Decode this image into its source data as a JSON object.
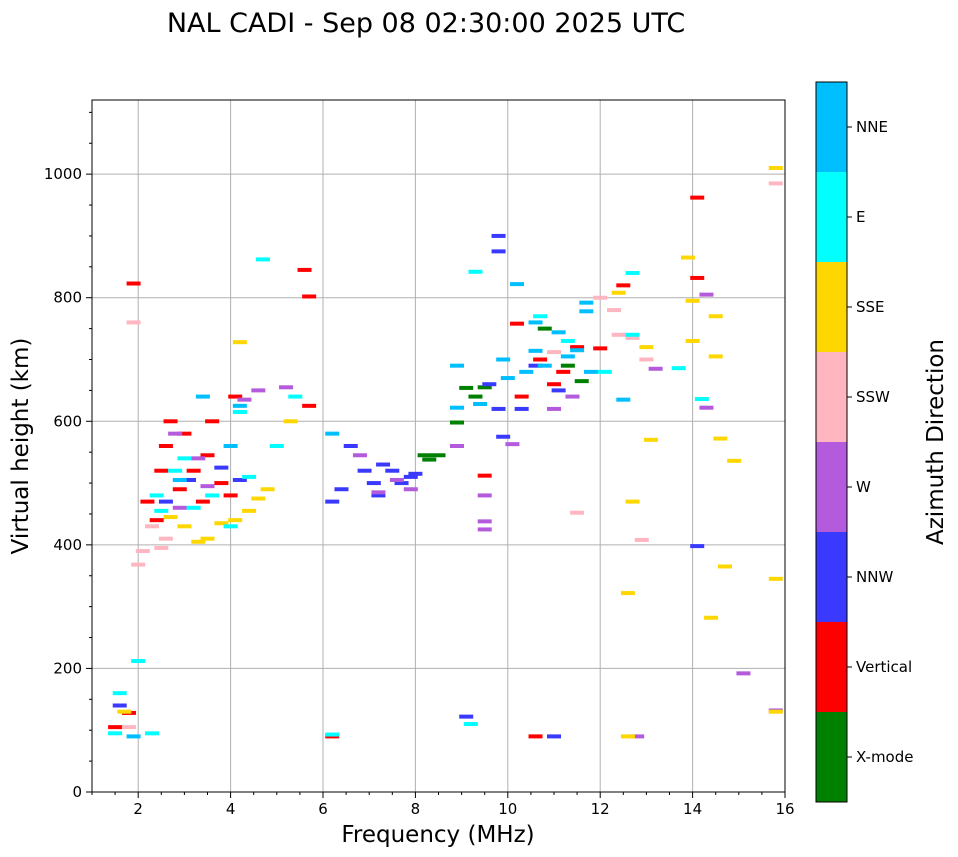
{
  "chart_data": {
    "type": "scatter",
    "title": "NAL CADI - Sep 08 02:30:00 2025 UTC",
    "xlabel": "Frequency (MHz)",
    "ylabel": "Virtual height (km)",
    "xlim": [
      1,
      16
    ],
    "ylim": [
      0,
      1120
    ],
    "xticks": [
      2,
      4,
      6,
      8,
      10,
      12,
      14,
      16
    ],
    "xtick_labels": [
      "2",
      "4",
      "6",
      "8",
      "10",
      "12",
      "14",
      "16"
    ],
    "yticks": [
      0,
      200,
      400,
      600,
      800,
      1000
    ],
    "ytick_labels": [
      "0",
      "200",
      "400",
      "600",
      "800",
      "1000"
    ],
    "grid": true,
    "colorbar": {
      "label": "Azimuth Direction",
      "categories": [
        {
          "name": "X-mode",
          "color": "#008000"
        },
        {
          "name": "Vertical",
          "color": "#ff0000"
        },
        {
          "name": "NNW",
          "color": "#3a3aff"
        },
        {
          "name": "W",
          "color": "#b45adc"
        },
        {
          "name": "SSW",
          "color": "#ffb6c1"
        },
        {
          "name": "SSE",
          "color": "#ffd700"
        },
        {
          "name": "E",
          "color": "#00ffff"
        },
        {
          "name": "NNE",
          "color": "#00bfff"
        }
      ]
    },
    "series": [
      {
        "name": "X-mode",
        "points": [
          [
            8.2,
            545
          ],
          [
            8.5,
            545
          ],
          [
            9.5,
            655
          ],
          [
            10.8,
            750
          ],
          [
            11.3,
            690
          ],
          [
            8.9,
            598
          ],
          [
            9.1,
            654
          ],
          [
            11.6,
            665
          ],
          [
            8.3,
            538
          ],
          [
            9.3,
            640
          ]
        ]
      },
      {
        "name": "Vertical",
        "points": [
          [
            1.5,
            105
          ],
          [
            1.8,
            128
          ],
          [
            2.4,
            440
          ],
          [
            2.6,
            560
          ],
          [
            2.7,
            600
          ],
          [
            3.0,
            580
          ],
          [
            3.2,
            520
          ],
          [
            3.5,
            545
          ],
          [
            3.8,
            500
          ],
          [
            4.0,
            480
          ],
          [
            4.1,
            640
          ],
          [
            5.6,
            845
          ],
          [
            5.7,
            802
          ],
          [
            5.7,
            625
          ],
          [
            6.2,
            90
          ],
          [
            9.5,
            512
          ],
          [
            10.2,
            758
          ],
          [
            10.6,
            90
          ],
          [
            10.7,
            700
          ],
          [
            11.2,
            680
          ],
          [
            11.5,
            720
          ],
          [
            12.0,
            718
          ],
          [
            12.5,
            820
          ],
          [
            14.1,
            962
          ],
          [
            14.1,
            832
          ],
          [
            11.0,
            660
          ],
          [
            10.3,
            640
          ],
          [
            2.9,
            490
          ],
          [
            3.4,
            470
          ],
          [
            2.2,
            470
          ],
          [
            2.5,
            520
          ],
          [
            3.6,
            600
          ],
          [
            1.9,
            823
          ]
        ]
      },
      {
        "name": "NNW",
        "points": [
          [
            1.6,
            140
          ],
          [
            6.6,
            560
          ],
          [
            6.9,
            520
          ],
          [
            7.1,
            500
          ],
          [
            7.3,
            530
          ],
          [
            7.5,
            520
          ],
          [
            7.7,
            500
          ],
          [
            7.9,
            510
          ],
          [
            9.8,
            900
          ],
          [
            9.8,
            875
          ],
          [
            9.1,
            122
          ],
          [
            9.8,
            620
          ],
          [
            10.3,
            620
          ],
          [
            11.0,
            90
          ],
          [
            14.1,
            398
          ],
          [
            10.6,
            690
          ],
          [
            11.1,
            650
          ],
          [
            6.2,
            470
          ],
          [
            6.4,
            490
          ],
          [
            7.2,
            480
          ],
          [
            8.0,
            515
          ],
          [
            2.6,
            470
          ],
          [
            3.1,
            505
          ],
          [
            3.8,
            525
          ],
          [
            4.2,
            505
          ],
          [
            9.9,
            575
          ],
          [
            9.6,
            660
          ]
        ]
      },
      {
        "name": "W",
        "points": [
          [
            6.8,
            545
          ],
          [
            7.2,
            485
          ],
          [
            7.6,
            505
          ],
          [
            7.9,
            490
          ],
          [
            9.5,
            480
          ],
          [
            9.5,
            438
          ],
          [
            9.5,
            425
          ],
          [
            10.1,
            563
          ],
          [
            11.0,
            620
          ],
          [
            12.8,
            90
          ],
          [
            13.2,
            685
          ],
          [
            14.3,
            805
          ],
          [
            14.3,
            622
          ],
          [
            15.1,
            192
          ],
          [
            15.8,
            132
          ],
          [
            2.8,
            580
          ],
          [
            3.3,
            540
          ],
          [
            4.6,
            650
          ],
          [
            5.2,
            655
          ],
          [
            2.9,
            460
          ],
          [
            3.5,
            495
          ],
          [
            4.3,
            635
          ],
          [
            8.9,
            560
          ],
          [
            11.4,
            640
          ]
        ]
      },
      {
        "name": "SSW",
        "points": [
          [
            1.8,
            105
          ],
          [
            2.0,
            368
          ],
          [
            2.1,
            390
          ],
          [
            2.3,
            430
          ],
          [
            2.6,
            410
          ],
          [
            12.4,
            740
          ],
          [
            12.7,
            735
          ],
          [
            12.9,
            408
          ],
          [
            12.0,
            800
          ],
          [
            15.8,
            985
          ],
          [
            11.5,
            452
          ],
          [
            11.0,
            712
          ],
          [
            12.3,
            780
          ],
          [
            13.0,
            700
          ],
          [
            1.9,
            760
          ],
          [
            2.5,
            395
          ]
        ]
      },
      {
        "name": "SSE",
        "points": [
          [
            1.7,
            130
          ],
          [
            3.3,
            405
          ],
          [
            3.5,
            410
          ],
          [
            3.8,
            435
          ],
          [
            4.1,
            440
          ],
          [
            4.4,
            455
          ],
          [
            4.6,
            475
          ],
          [
            4.8,
            490
          ],
          [
            12.6,
            90
          ],
          [
            12.6,
            322
          ],
          [
            13.1,
            570
          ],
          [
            13.9,
            865
          ],
          [
            14.5,
            770
          ],
          [
            14.6,
            572
          ],
          [
            14.7,
            365
          ],
          [
            14.4,
            282
          ],
          [
            14.9,
            536
          ],
          [
            15.8,
            130
          ],
          [
            15.8,
            345
          ],
          [
            15.8,
            1010
          ],
          [
            13.0,
            720
          ],
          [
            12.7,
            470
          ],
          [
            3.0,
            430
          ],
          [
            2.7,
            445
          ],
          [
            4.2,
            728
          ],
          [
            14.0,
            730
          ],
          [
            14.5,
            705
          ],
          [
            14.0,
            795
          ],
          [
            12.4,
            808
          ],
          [
            5.3,
            600
          ]
        ]
      },
      {
        "name": "E",
        "points": [
          [
            1.6,
            160
          ],
          [
            1.5,
            95
          ],
          [
            2.0,
            212
          ],
          [
            2.3,
            95
          ],
          [
            2.4,
            480
          ],
          [
            2.8,
            520
          ],
          [
            3.2,
            460
          ],
          [
            3.6,
            480
          ],
          [
            4.0,
            430
          ],
          [
            4.4,
            510
          ],
          [
            4.7,
            862
          ],
          [
            5.0,
            560
          ],
          [
            5.4,
            640
          ],
          [
            6.2,
            93
          ],
          [
            9.3,
            842
          ],
          [
            9.2,
            110
          ],
          [
            12.7,
            840
          ],
          [
            12.7,
            740
          ],
          [
            12.1,
            680
          ],
          [
            10.7,
            770
          ],
          [
            11.3,
            730
          ],
          [
            13.7,
            686
          ],
          [
            14.2,
            636
          ],
          [
            2.5,
            455
          ],
          [
            3.0,
            540
          ],
          [
            4.2,
            615
          ]
        ]
      },
      {
        "name": "NNE",
        "points": [
          [
            1.9,
            90
          ],
          [
            4.2,
            625
          ],
          [
            6.2,
            580
          ],
          [
            8.9,
            690
          ],
          [
            8.9,
            622
          ],
          [
            9.4,
            628
          ],
          [
            9.9,
            700
          ],
          [
            10.0,
            670
          ],
          [
            10.2,
            822
          ],
          [
            10.4,
            680
          ],
          [
            10.6,
            714
          ],
          [
            10.8,
            690
          ],
          [
            11.1,
            744
          ],
          [
            11.3,
            705
          ],
          [
            11.5,
            715
          ],
          [
            11.7,
            778
          ],
          [
            12.5,
            635
          ],
          [
            11.8,
            680
          ],
          [
            10.6,
            760
          ],
          [
            11.7,
            792
          ],
          [
            3.4,
            640
          ],
          [
            2.9,
            505
          ],
          [
            4.0,
            560
          ]
        ]
      }
    ]
  }
}
